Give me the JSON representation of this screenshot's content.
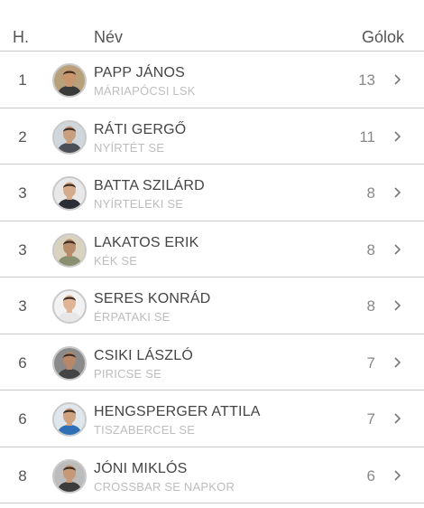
{
  "header": {
    "rank": "H.",
    "name": "Név",
    "goals": "Gólok"
  },
  "rows": [
    {
      "rank": "1",
      "name": "PAPP JÁNOS",
      "club": "MÁRIAPÓCSI LSK",
      "goals": "13",
      "skin": "#c9956c",
      "shirt": "#3a3a3a",
      "bg": "#b8a07a"
    },
    {
      "rank": "2",
      "name": "RÁTI GERGŐ",
      "club": "NYÍRTÉT SE",
      "goals": "11",
      "skin": "#c8a080",
      "shirt": "#4a4f58",
      "bg": "#cfd6dc"
    },
    {
      "rank": "3",
      "name": "BATTA SZILÁRD",
      "club": "NYÍRTELEKI SE",
      "goals": "8",
      "skin": "#d4ab8c",
      "shirt": "#2b2e36",
      "bg": "#e8e8e8"
    },
    {
      "rank": "3",
      "name": "LAKATOS ERIK",
      "club": "KÉK SE",
      "goals": "8",
      "skin": "#b98d6c",
      "shirt": "#8a8f72",
      "bg": "#d9d2bf"
    },
    {
      "rank": "3",
      "name": "SERES KONRÁD",
      "club": "ÉRPATAKI SE",
      "goals": "8",
      "skin": "#e0b595",
      "shirt": "#e7e7e7",
      "bg": "#f2f2f2"
    },
    {
      "rank": "6",
      "name": "CSIKI LÁSZLÓ",
      "club": "PIRICSE SE",
      "goals": "7",
      "skin": "#b78769",
      "shirt": "#444444",
      "bg": "#8a8a8a"
    },
    {
      "rank": "6",
      "name": "HENGSPERGER ATTILA",
      "club": "TISZABERCEL SE",
      "goals": "7",
      "skin": "#cfa382",
      "shirt": "#2f6fb5",
      "bg": "#dfe6ec"
    },
    {
      "rank": "8",
      "name": "JÓNI MIKLÓS",
      "club": "CROSSBAR SE NAPKOR",
      "goals": "6",
      "skin": "#c59878",
      "shirt": "#3c3c3c",
      "bg": "#bcbcbc"
    }
  ]
}
